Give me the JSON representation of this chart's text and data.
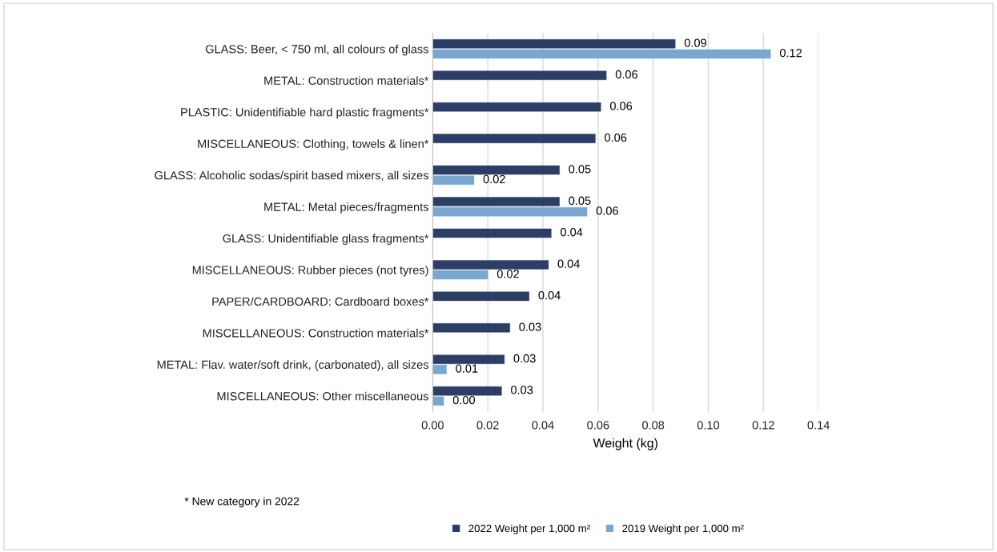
{
  "chart_data": {
    "type": "bar",
    "orientation": "horizontal",
    "xlabel": "Weight (kg)",
    "categories": [
      "GLASS: Beer, < 750 ml, all colours of glass",
      "METAL: Construction materials*",
      "PLASTIC: Unidentifiable hard plastic fragments*",
      "MISCELLANEOUS: Clothing, towels & linen*",
      "GLASS: Alcoholic sodas/spirit based mixers, all sizes",
      "METAL: Metal pieces/fragments",
      "GLASS: Unidentifiable glass fragments*",
      "MISCELLANEOUS: Rubber pieces (not tyres)",
      "PAPER/CARDBOARD: Cardboard boxes*",
      "MISCELLANEOUS: Construction materials*",
      "METAL: Flav. water/soft drink, (carbonated), all sizes",
      "MISCELLANEOUS: Other miscellaneous"
    ],
    "series": [
      {
        "name": "2022 Weight per 1,000 m²",
        "color": "#2c3e66",
        "values": [
          0.088,
          0.063,
          0.061,
          0.059,
          0.046,
          0.046,
          0.043,
          0.042,
          0.035,
          0.028,
          0.026,
          0.025
        ],
        "value_labels": [
          "0.09",
          "0.06",
          "0.06",
          "0.06",
          "0.05",
          "0.05",
          "0.04",
          "0.04",
          "0.04",
          "0.03",
          "0.03",
          "0.03"
        ]
      },
      {
        "name": "2019 Weight per 1,000 m²",
        "color": "#7aa7cf",
        "values": [
          0.1226,
          null,
          null,
          null,
          0.015,
          0.056,
          null,
          0.02,
          null,
          null,
          0.005,
          0.004
        ],
        "value_labels": [
          "0.12",
          null,
          null,
          null,
          "0.02",
          "0.06",
          null,
          "0.02",
          null,
          null,
          "0.01",
          "0.00"
        ]
      }
    ],
    "xlim": [
      0,
      0.14
    ],
    "xticks": [
      {
        "value": 0,
        "label": "0.00"
      },
      {
        "value": 0.02,
        "label": "0.02"
      },
      {
        "value": 0.04,
        "label": "0.04"
      },
      {
        "value": 0.06,
        "label": "0.06"
      },
      {
        "value": 0.08,
        "label": "0.08"
      },
      {
        "value": 0.1,
        "label": "0.10"
      },
      {
        "value": 0.12,
        "label": "0.12"
      },
      {
        "value": 0.14,
        "label": "0.14"
      }
    ],
    "grid": "x",
    "legend": "bottom",
    "annotations": [
      "* New category in 2022"
    ]
  }
}
